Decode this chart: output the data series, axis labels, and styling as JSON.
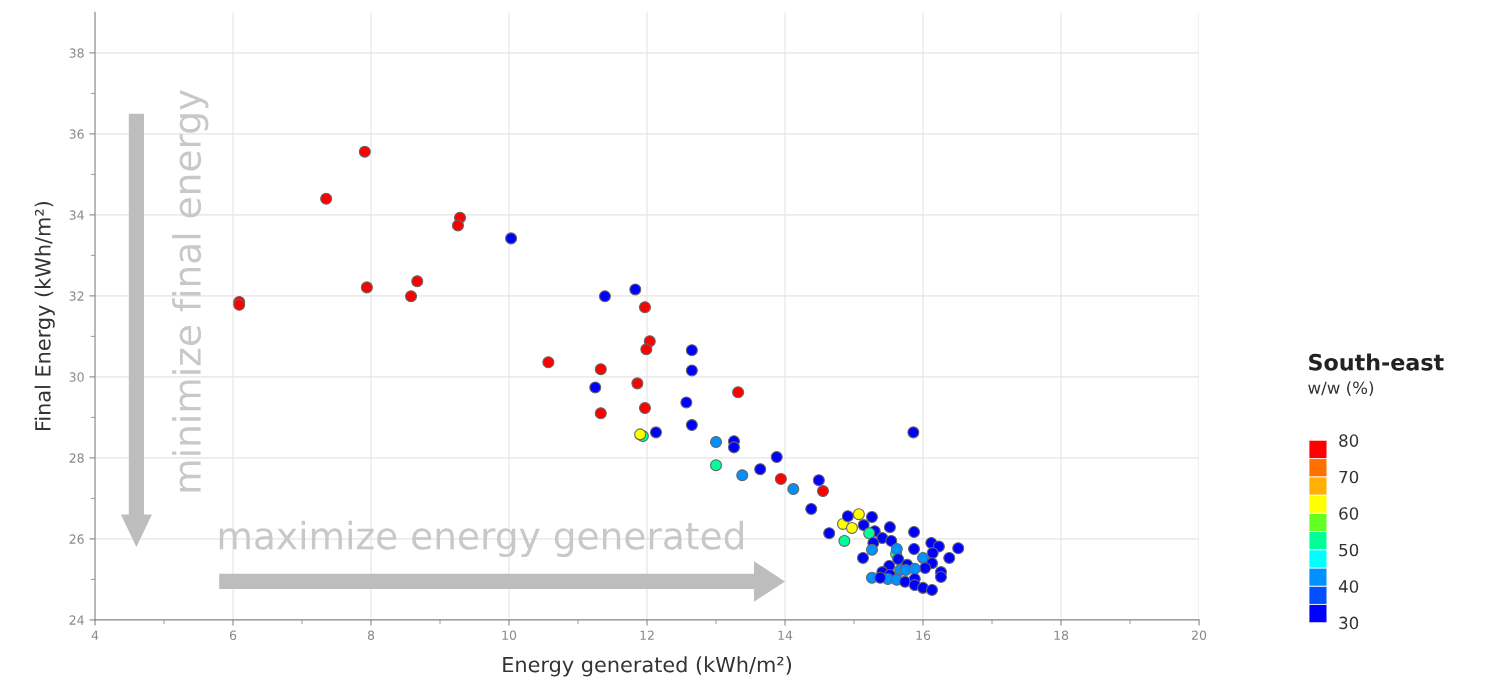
{
  "chart_data": {
    "type": "scatter",
    "xlabel": "Energy generated (kWh/m²)",
    "ylabel": "Final Energy (kWh/m²)",
    "clabel": "South-east\nw/w (%)",
    "xlim": [
      4,
      20
    ],
    "xticks": [
      4,
      {
        "value": 5,
        "label": null
      },
      6,
      {
        "value": 7,
        "label": null
      },
      8,
      {
        "value": 9,
        "label": null
      },
      10,
      {
        "value": 11,
        "label": null
      },
      12,
      {
        "value": 13,
        "label": null
      },
      14,
      {
        "value": 15,
        "label": null
      },
      16,
      {
        "value": 17,
        "label": null
      },
      18,
      {
        "value": 19,
        "label": null
      },
      20
    ],
    "ylim": [
      24,
      39
    ],
    "yticks": [
      24,
      {
        "value": 25,
        "label": null
      },
      26,
      {
        "value": 27,
        "label": null
      },
      28,
      {
        "value": 29,
        "label": null
      },
      30,
      {
        "value": 31,
        "label": null
      },
      32,
      {
        "value": 33,
        "label": null
      },
      34,
      {
        "value": 35,
        "label": null
      },
      36,
      {
        "value": 37,
        "label": null
      },
      38
    ],
    "grid": true,
    "marker": "circle",
    "clim": [
      30,
      80
    ],
    "cticks": [
      30,
      40,
      50,
      60,
      70,
      80
    ],
    "colors": [
      "#0000ff",
      "#0050ff",
      "#0090ff",
      "#00ffff",
      "#00ff99",
      "#66ff22",
      "#ffff00",
      "#ffb000",
      "#ff7000",
      "#ff0000"
    ],
    "annotations": [
      "minimize final energy",
      "maximize energy generated"
    ],
    "series": [
      {
        "x": [
          6.09,
          6.09,
          7.35,
          7.91,
          7.94,
          8.58,
          8.67,
          9.29,
          9.26,
          10.57,
          11.33,
          11.33,
          11.86,
          11.97,
          12.04,
          11.99,
          11.97,
          13.32,
          13.94,
          14.55,
          10.03,
          11.39,
          11.83,
          11.25,
          12.65,
          12.65,
          12.57,
          12.65,
          12.13,
          13.26,
          13.26,
          13.88,
          13.64,
          14.49,
          14.38,
          14.64,
          15.86,
          13.0,
          13.38,
          14.12,
          13.0,
          11.94,
          11.9,
          15.07,
          14.84,
          14.97,
          14.86,
          14.91,
          15.26,
          15.14,
          15.3,
          15.52,
          15.22,
          15.41,
          15.54,
          15.28,
          15.87,
          15.26,
          15.13,
          15.87,
          16.12,
          16.23,
          16.51,
          16.14,
          16.38,
          16.0,
          16.13,
          16.03,
          16.26,
          16.26,
          15.61,
          15.62,
          15.64,
          15.51,
          15.77,
          15.67,
          15.75,
          15.88,
          15.41,
          15.52,
          15.26,
          15.49,
          15.62,
          15.74,
          15.88,
          15.88,
          16.0,
          16.13,
          15.38
        ],
        "values": [
          31.85,
          31.78,
          34.4,
          35.56,
          32.21,
          31.99,
          32.36,
          33.93,
          33.74,
          30.36,
          30.19,
          29.1,
          29.84,
          31.72,
          30.88,
          30.68,
          29.23,
          29.62,
          27.48,
          27.18,
          33.42,
          31.99,
          32.16,
          29.74,
          30.66,
          30.16,
          29.37,
          28.81,
          28.63,
          28.41,
          28.26,
          28.02,
          27.72,
          27.45,
          26.74,
          26.14,
          28.63,
          28.39,
          27.57,
          27.23,
          27.82,
          28.54,
          28.58,
          26.61,
          26.37,
          26.27,
          25.95,
          26.56,
          26.54,
          26.34,
          26.19,
          26.29,
          26.14,
          26.02,
          25.95,
          25.9,
          26.17,
          25.73,
          25.53,
          25.75,
          25.9,
          25.81,
          25.77,
          25.65,
          25.53,
          25.53,
          25.4,
          25.28,
          25.18,
          25.06,
          25.63,
          25.75,
          25.5,
          25.33,
          25.36,
          25.23,
          25.23,
          25.26,
          25.18,
          25.11,
          25.04,
          25.01,
          24.99,
          24.94,
          25.01,
          24.86,
          24.79,
          24.74,
          25.04
        ],
        "cvalues": [
          77.5,
          77.5,
          77.5,
          77.5,
          77.5,
          77.5,
          77.5,
          77.5,
          77.5,
          77.5,
          77.5,
          77.5,
          77.5,
          77.5,
          77.5,
          77.5,
          77.5,
          77.5,
          77.5,
          77.5,
          32.5,
          32.5,
          32.5,
          32.5,
          32.5,
          32.5,
          32.5,
          32.5,
          32.5,
          32.5,
          32.5,
          32.5,
          32.5,
          32.5,
          32.5,
          32.5,
          32.5,
          42.5,
          42.5,
          42.5,
          52.5,
          52.5,
          62.5,
          62.5,
          62.5,
          62.5,
          52.5,
          32.5,
          32.5,
          32.5,
          32.5,
          32.5,
          52.5,
          32.5,
          32.5,
          32.5,
          32.5,
          42.5,
          32.5,
          32.5,
          32.5,
          32.5,
          32.5,
          32.5,
          32.5,
          42.5,
          32.5,
          32.5,
          32.5,
          32.5,
          52.5,
          42.5,
          32.5,
          32.5,
          32.5,
          42.5,
          42.5,
          42.5,
          32.5,
          32.5,
          42.5,
          42.5,
          42.5,
          32.5,
          32.5,
          32.5,
          32.5,
          32.5,
          32.5
        ]
      }
    ]
  }
}
